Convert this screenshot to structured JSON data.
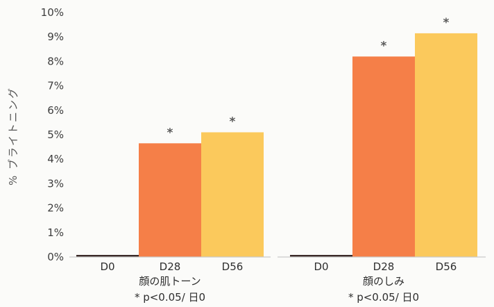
{
  "chart_data": {
    "type": "bar",
    "ylabel": "% ブライトニング",
    "ylim": [
      0,
      10
    ],
    "y_ticks": [
      "0%",
      "1%",
      "2%",
      "3%",
      "4%",
      "5%",
      "6%",
      "7%",
      "8%",
      "9%",
      "10%"
    ],
    "grid": false,
    "groups": [
      {
        "label": "顔の肌トーン",
        "note": "* p<0.05/ 日0",
        "categories": [
          "D0",
          "D28",
          "D56"
        ],
        "values": [
          0,
          4.65,
          5.1
        ],
        "markers": [
          "",
          "*",
          "*"
        ]
      },
      {
        "label": "顔のしみ",
        "note": "* p<0.05/ 日0",
        "categories": [
          "D0",
          "D28",
          "D56"
        ],
        "values": [
          0,
          8.2,
          9.15
        ],
        "markers": [
          "",
          "*",
          "*"
        ]
      }
    ],
    "colors": {
      "D0": "#3a2a28",
      "D28": "#f57f48",
      "D56": "#fbc95c",
      "axis": "#c9c9c9",
      "marker": "#5a5a5a"
    }
  }
}
